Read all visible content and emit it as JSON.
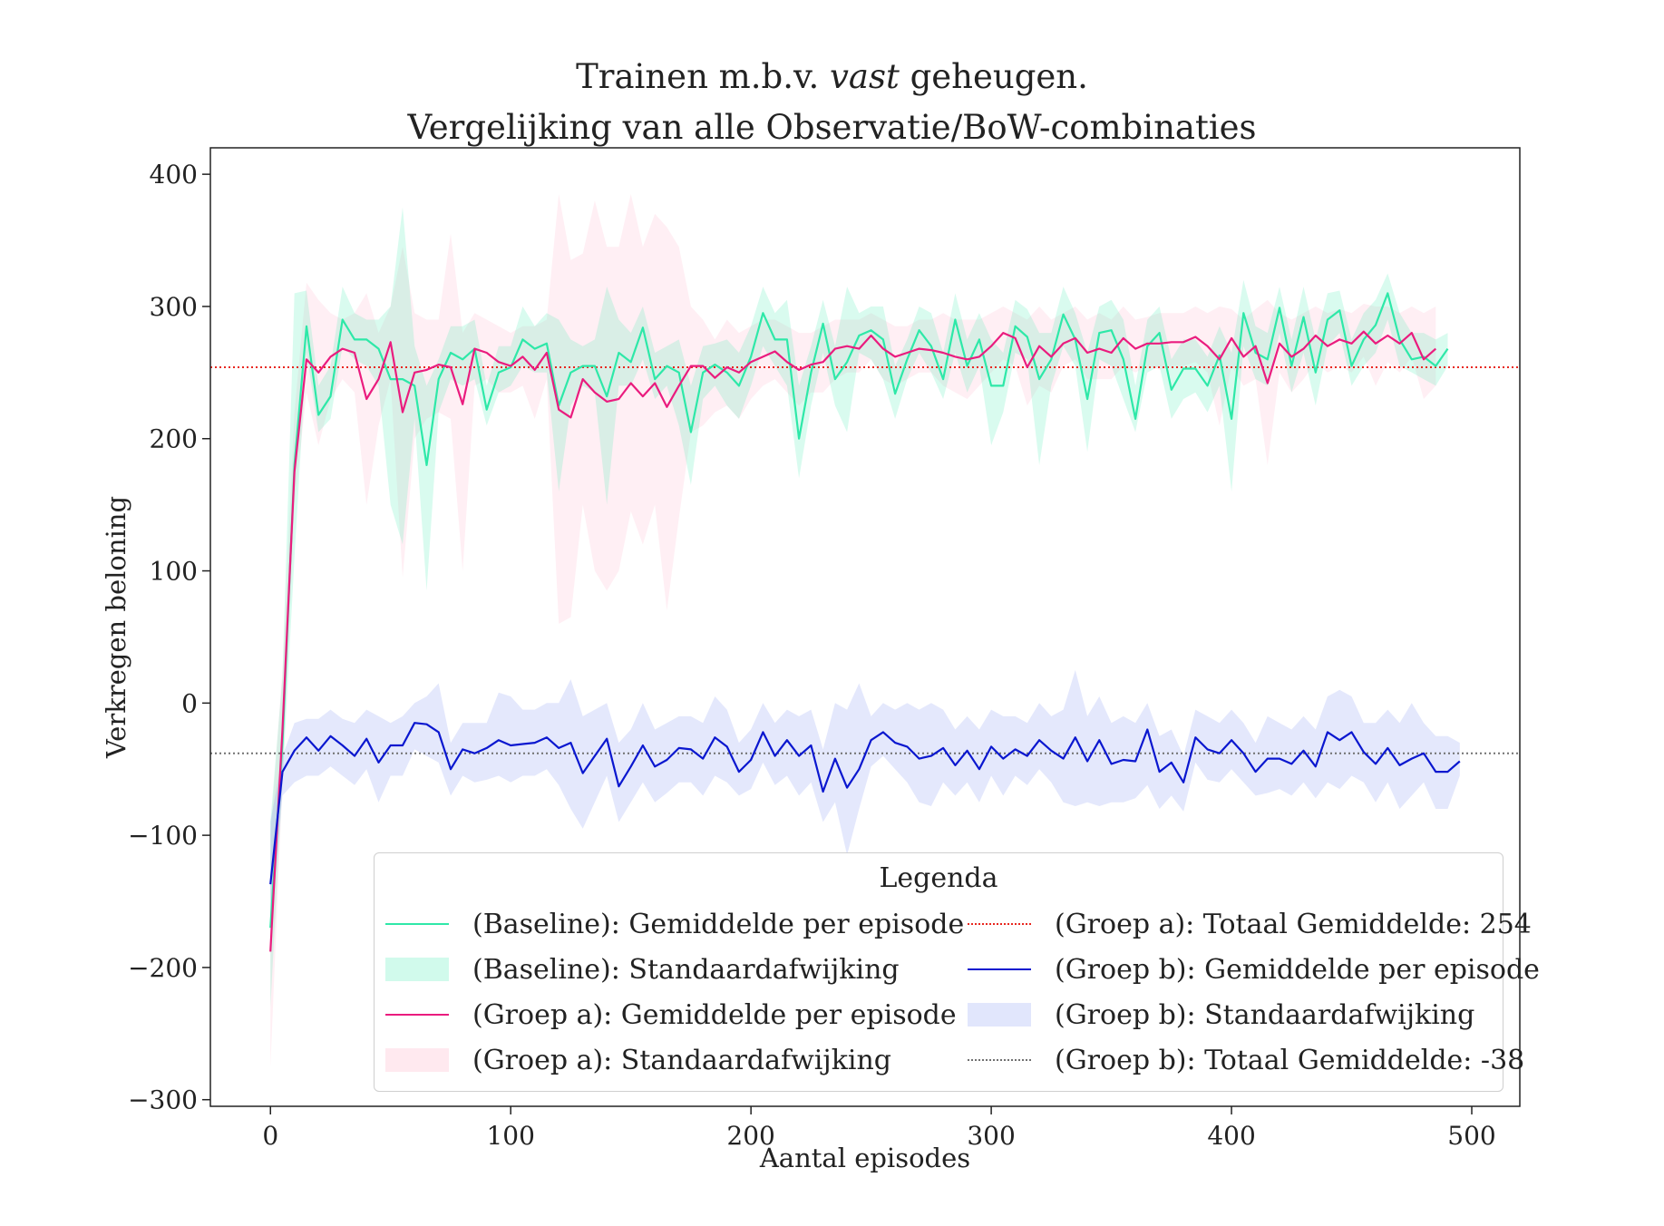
{
  "chart_data": {
    "type": "line",
    "title_line1": "Trainen m.b.v. vast geheugen.",
    "title_line2": "Vergelijking van alle Observatie/BoW-combinaties",
    "xlabel": "Aantal episodes",
    "ylabel": "Verkregen beloning",
    "xlim": [
      -25,
      520
    ],
    "ylim": [
      -305,
      420
    ],
    "xticks": [
      0,
      100,
      200,
      300,
      400,
      500
    ],
    "yticks": [
      400,
      300,
      200,
      100,
      0,
      -100,
      -200,
      -300
    ],
    "ytick_labels": [
      "400",
      "300",
      "200",
      "100",
      "0",
      "−100",
      "−200",
      "−300"
    ],
    "grid": false,
    "legend_title": "Legenda",
    "legend_position": "lower-right",
    "colors": {
      "baseline": "#2ee8a8",
      "baseline_fill": "rgba(46,232,168,0.18)",
      "groep_a": "#ea1c7e",
      "groep_a_fill": "rgba(255,192,210,0.25)",
      "groep_a_total": "#e8261e",
      "groep_b": "#0a17cf",
      "groep_b_fill": "rgba(120,140,240,0.20)",
      "groep_b_total": "#707070"
    },
    "legend": [
      "(Baseline): Gemiddelde per episode",
      "(Baseline): Standaardafwijking",
      "(Groep a): Gemiddelde per episode",
      "(Groep a): Standaardafwijking",
      "(Groep a): Totaal Gemiddelde: 254",
      "(Groep b): Gemiddelde per episode",
      "(Groep b): Standaardafwijking",
      "(Groep b): Totaal Gemiddelde: -38"
    ],
    "totals": {
      "groep_a": 254,
      "groep_b": -38
    },
    "x_start": 0,
    "x_step": 5,
    "series": [
      {
        "name": "(Baseline): Gemiddelde per episode",
        "values": [
          -170,
          -30,
          180,
          285,
          218,
          232,
          290,
          275,
          275,
          268,
          245,
          245,
          240,
          180,
          245,
          265,
          260,
          268,
          222,
          250,
          254,
          275,
          268,
          272,
          225,
          250,
          255,
          255,
          232,
          265,
          258,
          284,
          245,
          255,
          250,
          205,
          250,
          256,
          250,
          240,
          262,
          295,
          275,
          275,
          200,
          250,
          287,
          245,
          258,
          278,
          282,
          275,
          234,
          260,
          282,
          270,
          245,
          290,
          255,
          275,
          240,
          240,
          285,
          277,
          245,
          260,
          294,
          275,
          230,
          280,
          282,
          260,
          215,
          270,
          280,
          237,
          253,
          253,
          240,
          263,
          215,
          295,
          265,
          260,
          299,
          255,
          292,
          250,
          290,
          297,
          255,
          275,
          286,
          310,
          275,
          260,
          262,
          255,
          268
        ],
        "lower": [
          -230,
          -60,
          110,
          265,
          205,
          215,
          270,
          260,
          255,
          240,
          150,
          120,
          215,
          85,
          220,
          245,
          240,
          245,
          210,
          235,
          240,
          255,
          250,
          250,
          160,
          225,
          240,
          235,
          150,
          240,
          240,
          260,
          230,
          240,
          210,
          165,
          230,
          240,
          225,
          215,
          240,
          270,
          255,
          240,
          170,
          225,
          265,
          225,
          205,
          265,
          260,
          245,
          215,
          245,
          265,
          250,
          230,
          265,
          235,
          255,
          195,
          220,
          265,
          260,
          180,
          240,
          270,
          255,
          190,
          260,
          255,
          230,
          205,
          250,
          255,
          215,
          230,
          235,
          220,
          240,
          160,
          270,
          245,
          240,
          280,
          235,
          265,
          225,
          270,
          280,
          240,
          255,
          265,
          290,
          255,
          250,
          245,
          240,
          255
        ],
        "upper": [
          -90,
          20,
          310,
          312,
          240,
          255,
          315,
          295,
          290,
          290,
          300,
          375,
          270,
          240,
          260,
          285,
          285,
          290,
          240,
          270,
          270,
          300,
          285,
          295,
          290,
          275,
          270,
          275,
          315,
          290,
          280,
          300,
          265,
          270,
          275,
          240,
          270,
          272,
          275,
          265,
          285,
          315,
          295,
          305,
          240,
          270,
          305,
          270,
          315,
          295,
          300,
          300,
          255,
          275,
          300,
          295,
          265,
          310,
          275,
          295,
          275,
          265,
          305,
          298,
          280,
          280,
          315,
          295,
          265,
          300,
          305,
          290,
          240,
          290,
          300,
          260,
          275,
          275,
          262,
          285,
          265,
          320,
          285,
          280,
          315,
          275,
          315,
          275,
          310,
          312,
          275,
          295,
          305,
          325,
          295,
          280,
          280,
          275,
          280
        ]
      },
      {
        "name": "(Groep a): Gemiddelde per episode",
        "values": [
          -188,
          -20,
          175,
          260,
          250,
          262,
          268,
          265,
          230,
          245,
          273,
          220,
          250,
          252,
          256,
          254,
          226,
          268,
          265,
          258,
          255,
          262,
          252,
          265,
          222,
          216,
          245,
          235,
          228,
          230,
          242,
          232,
          242,
          224,
          240,
          255,
          255,
          246,
          254,
          250,
          258,
          262,
          266,
          258,
          252,
          256,
          258,
          268,
          270,
          268,
          278,
          268,
          262,
          265,
          268,
          267,
          265,
          262,
          260,
          262,
          270,
          280,
          276,
          254,
          270,
          262,
          272,
          276,
          265,
          268,
          265,
          276,
          268,
          272,
          272,
          273,
          273,
          277,
          270,
          260,
          276,
          262,
          270,
          242,
          272,
          262,
          268,
          278,
          270,
          275,
          272,
          281,
          272,
          278,
          272,
          280,
          260,
          268
        ],
        "lower": [
          -275,
          -60,
          150,
          235,
          195,
          230,
          245,
          235,
          150,
          210,
          245,
          95,
          200,
          215,
          220,
          215,
          100,
          240,
          245,
          235,
          235,
          240,
          215,
          245,
          60,
          65,
          150,
          100,
          85,
          100,
          145,
          120,
          150,
          70,
          140,
          205,
          210,
          220,
          225,
          215,
          230,
          240,
          245,
          235,
          225,
          235,
          235,
          245,
          250,
          250,
          260,
          245,
          240,
          245,
          250,
          250,
          240,
          235,
          230,
          240,
          250,
          260,
          255,
          225,
          240,
          235,
          255,
          260,
          245,
          245,
          245,
          255,
          250,
          255,
          252,
          255,
          255,
          258,
          250,
          210,
          255,
          240,
          245,
          180,
          250,
          235,
          245,
          258,
          250,
          255,
          250,
          262,
          240,
          258,
          250,
          262,
          230,
          240
        ],
        "upper": [
          -100,
          25,
          220,
          318,
          305,
          295,
          290,
          295,
          310,
          280,
          300,
          345,
          295,
          290,
          290,
          355,
          280,
          295,
          290,
          285,
          280,
          285,
          285,
          290,
          385,
          335,
          340,
          380,
          345,
          345,
          385,
          345,
          370,
          360,
          345,
          300,
          290,
          275,
          290,
          280,
          285,
          290,
          290,
          285,
          280,
          280,
          285,
          290,
          290,
          290,
          295,
          290,
          285,
          285,
          290,
          290,
          295,
          290,
          290,
          290,
          295,
          300,
          295,
          290,
          300,
          290,
          295,
          300,
          290,
          295,
          290,
          300,
          290,
          292,
          295,
          295,
          295,
          300,
          295,
          300,
          298,
          290,
          298,
          305,
          295,
          290,
          295,
          300,
          295,
          298,
          295,
          302,
          300,
          300,
          295,
          300,
          295,
          300
        ]
      },
      {
        "name": "(Groep b): Gemiddelde per episode",
        "values": [
          -137,
          -52,
          -36,
          -26,
          -36,
          -25,
          -32,
          -40,
          -27,
          -45,
          -32,
          -32,
          -15,
          -16,
          -22,
          -50,
          -35,
          -38,
          -34,
          -28,
          -32,
          -31,
          -30,
          -26,
          -34,
          -30,
          -53,
          -40,
          -27,
          -63,
          -48,
          -32,
          -48,
          -43,
          -34,
          -35,
          -42,
          -26,
          -33,
          -52,
          -43,
          -22,
          -40,
          -28,
          -40,
          -32,
          -67,
          -42,
          -64,
          -50,
          -28,
          -22,
          -30,
          -33,
          -42,
          -40,
          -34,
          -47,
          -36,
          -50,
          -33,
          -42,
          -35,
          -40,
          -28,
          -36,
          -42,
          -26,
          -44,
          -28,
          -46,
          -43,
          -44,
          -20,
          -52,
          -45,
          -60,
          -26,
          -35,
          -38,
          -28,
          -38,
          -52,
          -42,
          -42,
          -46,
          -36,
          -48,
          -22,
          -28,
          -22,
          -37,
          -46,
          -34,
          -47,
          -42,
          -38,
          -52,
          -52,
          -44
        ],
        "lower": [
          -175,
          -70,
          -60,
          -55,
          -55,
          -48,
          -55,
          -62,
          -50,
          -75,
          -55,
          -55,
          -35,
          -40,
          -45,
          -70,
          -55,
          -60,
          -58,
          -55,
          -60,
          -55,
          -55,
          -50,
          -62,
          -80,
          -95,
          -75,
          -55,
          -90,
          -75,
          -60,
          -75,
          -68,
          -60,
          -60,
          -70,
          -55,
          -60,
          -70,
          -65,
          -45,
          -62,
          -55,
          -70,
          -60,
          -90,
          -75,
          -115,
          -80,
          -48,
          -40,
          -50,
          -60,
          -75,
          -78,
          -60,
          -70,
          -60,
          -75,
          -55,
          -70,
          -55,
          -62,
          -50,
          -60,
          -75,
          -78,
          -75,
          -78,
          -75,
          -75,
          -72,
          -62,
          -80,
          -70,
          -82,
          -45,
          -58,
          -60,
          -50,
          -60,
          -70,
          -68,
          -65,
          -70,
          -60,
          -72,
          -60,
          -65,
          -55,
          -60,
          -75,
          -60,
          -80,
          -70,
          -60,
          -80,
          -80,
          -55
        ],
        "upper": [
          -90,
          -40,
          -15,
          -12,
          -12,
          -5,
          -12,
          -15,
          -5,
          -10,
          -15,
          -10,
          0,
          5,
          15,
          -30,
          -15,
          -15,
          -15,
          8,
          5,
          -5,
          -5,
          0,
          0,
          18,
          -10,
          -5,
          0,
          -30,
          -20,
          0,
          -20,
          -15,
          -10,
          -10,
          -15,
          5,
          -5,
          -30,
          -20,
          0,
          -15,
          -5,
          -10,
          -5,
          -35,
          0,
          -5,
          15,
          -10,
          0,
          -5,
          0,
          -5,
          0,
          -5,
          -20,
          -10,
          -20,
          -5,
          -10,
          -10,
          -15,
          0,
          -10,
          -5,
          25,
          -10,
          5,
          -15,
          -10,
          -15,
          0,
          -25,
          -20,
          -40,
          -5,
          -10,
          -15,
          -5,
          -15,
          -30,
          -10,
          -15,
          -20,
          -10,
          -20,
          5,
          10,
          5,
          -15,
          -15,
          -5,
          -15,
          0,
          -15,
          -25,
          -25,
          -30
        ]
      }
    ]
  }
}
